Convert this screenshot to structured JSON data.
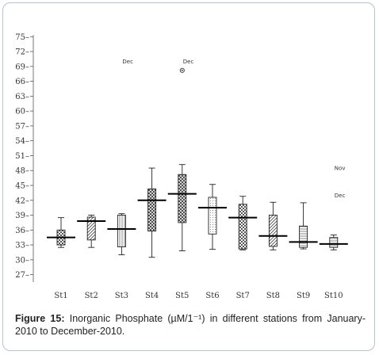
{
  "chart_data": {
    "type": "box",
    "title": "",
    "xlabel": "",
    "ylabel": "",
    "categories": [
      "St1",
      "St2",
      "St3",
      "St4",
      "St5",
      "St6",
      "St7",
      "St8",
      "St9",
      "St10"
    ],
    "yticks": [
      27,
      30,
      33,
      36,
      39,
      42,
      45,
      48,
      51,
      54,
      57,
      60,
      63,
      66,
      69,
      72,
      75
    ],
    "ylim": [
      25.5,
      76
    ],
    "boxes": [
      {
        "station": "St1",
        "min": 32.5,
        "q1": 33.0,
        "median": 34.5,
        "q3": 36.0,
        "max": 38.5,
        "pattern": "checker"
      },
      {
        "station": "St2",
        "min": 32.5,
        "q1": 34.0,
        "median": 37.8,
        "q3": 38.6,
        "max": 39.0,
        "pattern": "diag"
      },
      {
        "station": "St3",
        "min": 31.0,
        "q1": 32.6,
        "median": 36.2,
        "q3": 39.0,
        "max": 39.3,
        "pattern": "vlines"
      },
      {
        "station": "St4",
        "min": 30.5,
        "q1": 35.8,
        "median": 42.0,
        "q3": 44.3,
        "max": 48.5,
        "pattern": "hatch"
      },
      {
        "station": "St5",
        "min": 31.8,
        "q1": 37.5,
        "median": 43.3,
        "q3": 47.2,
        "max": 49.2,
        "pattern": "hatch"
      },
      {
        "station": "St6",
        "min": 32.1,
        "q1": 35.2,
        "median": 40.5,
        "q3": 42.6,
        "max": 45.2,
        "pattern": "dots"
      },
      {
        "station": "St7",
        "min": 32.0,
        "q1": 32.2,
        "median": 38.5,
        "q3": 41.2,
        "max": 42.8,
        "pattern": "checker"
      },
      {
        "station": "St8",
        "min": 32.0,
        "q1": 32.7,
        "median": 34.8,
        "q3": 39.0,
        "max": 41.6,
        "pattern": "diag"
      },
      {
        "station": "St9",
        "min": 32.2,
        "q1": 32.5,
        "median": 33.6,
        "q3": 36.8,
        "max": 41.5,
        "pattern": "hlines"
      },
      {
        "station": "St10",
        "min": 32.0,
        "q1": 32.5,
        "median": 33.2,
        "q3": 34.5,
        "max": 35.0,
        "pattern": "hlines"
      }
    ],
    "outliers": [
      {
        "station": "St5",
        "value": 68.2
      }
    ],
    "annotations": [
      {
        "station": "St3",
        "value": 70.0,
        "text": "Dec"
      },
      {
        "station": "St5",
        "value": 70.0,
        "text": "Dec"
      },
      {
        "station": "St10",
        "value": 48.5,
        "text": "Nov"
      },
      {
        "station": "St10",
        "value": 43.0,
        "text": "Dec"
      }
    ]
  },
  "caption": {
    "label": "Figure 15:",
    "text": " Inorganic Phosphate (µM/1⁻¹) in different stations from January-2010 to December-2010."
  }
}
